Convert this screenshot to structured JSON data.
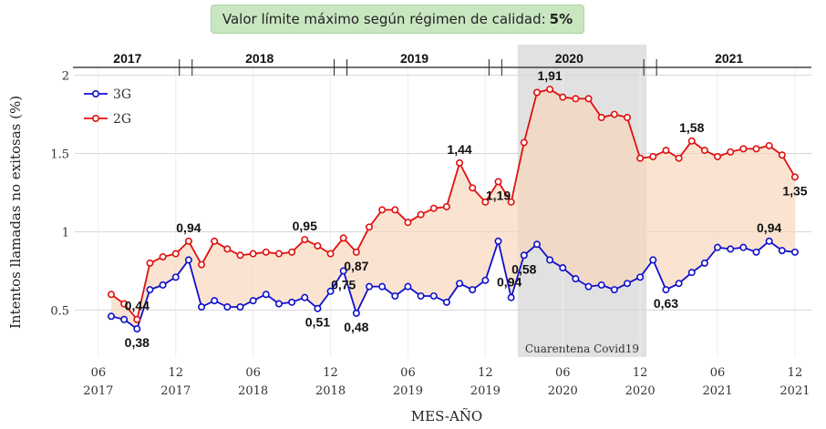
{
  "banner": {
    "text": "Valor límite máximo según régimen de calidad:",
    "value": "5%"
  },
  "chart_data": {
    "type": "line",
    "xlabel": "MES-AÑO",
    "ylabel": "Intentos llamadas no exitosas (%)",
    "ylim": [
      0.2,
      2.05
    ],
    "yticks": [
      "0.5",
      "1",
      "1.5",
      "2"
    ],
    "grid": true,
    "legend_position": "top-left",
    "years": [
      "2017",
      "2018",
      "2019",
      "2020",
      "2021"
    ],
    "x_ticks": [
      {
        "month": "06",
        "year": "2017"
      },
      {
        "month": "12",
        "year": "2017"
      },
      {
        "month": "06",
        "year": "2018"
      },
      {
        "month": "12",
        "year": "2018"
      },
      {
        "month": "06",
        "year": "2019"
      },
      {
        "month": "12",
        "year": "2019"
      },
      {
        "month": "06",
        "year": "2020"
      },
      {
        "month": "12",
        "year": "2020"
      },
      {
        "month": "06",
        "year": "2021"
      },
      {
        "month": "12",
        "year": "2021"
      }
    ],
    "x_start": "2017-07",
    "x_end": "2021-12",
    "shaded_region": {
      "label": "Cuarentena Covid19",
      "start": "2020-03",
      "end": "2020-12"
    },
    "series": [
      {
        "name": "3G",
        "color": "#1010cc",
        "values": [
          0.46,
          0.44,
          0.38,
          0.63,
          0.66,
          0.71,
          0.82,
          0.52,
          0.56,
          0.52,
          0.52,
          0.56,
          0.6,
          0.54,
          0.55,
          0.58,
          0.51,
          0.62,
          0.75,
          0.48,
          0.65,
          0.65,
          0.59,
          0.65,
          0.59,
          0.59,
          0.55,
          0.67,
          0.63,
          0.69,
          0.94,
          0.58,
          0.85,
          0.92,
          0.82,
          0.77,
          0.7,
          0.65,
          0.66,
          0.63,
          0.67,
          0.71,
          0.82,
          0.63,
          0.67,
          0.74,
          0.8,
          0.9,
          0.89,
          0.9,
          0.87,
          0.94,
          0.88,
          0.87
        ]
      },
      {
        "name": "2G",
        "color": "#e01010",
        "values": [
          0.6,
          0.54,
          0.44,
          0.8,
          0.84,
          0.86,
          0.94,
          0.79,
          0.94,
          0.89,
          0.85,
          0.86,
          0.87,
          0.86,
          0.87,
          0.95,
          0.91,
          0.86,
          0.96,
          0.87,
          1.03,
          1.14,
          1.14,
          1.06,
          1.11,
          1.15,
          1.16,
          1.44,
          1.28,
          1.19,
          1.32,
          1.19,
          1.57,
          1.89,
          1.91,
          1.86,
          1.85,
          1.85,
          1.73,
          1.75,
          1.73,
          1.47,
          1.48,
          1.52,
          1.47,
          1.58,
          1.52,
          1.48,
          1.51,
          1.53,
          1.53,
          1.55,
          1.49,
          1.35
        ]
      }
    ],
    "annotations": [
      {
        "series": "3G",
        "month": "2017-09",
        "text": "0,38",
        "pos": "below"
      },
      {
        "series": "2G",
        "month": "2017-09",
        "text": "0,44",
        "pos": "above"
      },
      {
        "series": "2G",
        "month": "2018-01",
        "text": "0,94",
        "pos": "above"
      },
      {
        "series": "2G",
        "month": "2018-10",
        "text": "0,95",
        "pos": "above"
      },
      {
        "series": "3G",
        "month": "2018-11",
        "text": "0,51",
        "pos": "below"
      },
      {
        "series": "3G",
        "month": "2019-01",
        "text": "0,75",
        "pos": "below"
      },
      {
        "series": "2G",
        "month": "2019-02",
        "text": "0,87",
        "pos": "below"
      },
      {
        "series": "3G",
        "month": "2019-02",
        "text": "0,48",
        "pos": "below"
      },
      {
        "series": "2G",
        "month": "2019-10",
        "text": "1,44",
        "pos": "above"
      },
      {
        "series": "3G",
        "month": "2020-02",
        "text": "0,94",
        "pos": "above-left"
      },
      {
        "series": "2G",
        "month": "2020-01",
        "text": "1,19",
        "pos": "below"
      },
      {
        "series": "3G",
        "month": "2020-03",
        "text": "0,58",
        "pos": "below"
      },
      {
        "series": "2G",
        "month": "2020-05",
        "text": "1,91",
        "pos": "above"
      },
      {
        "series": "3G",
        "month": "2021-02",
        "text": "0,63",
        "pos": "below"
      },
      {
        "series": "2G",
        "month": "2021-04",
        "text": "1,58",
        "pos": "above"
      },
      {
        "series": "3G",
        "month": "2021-10",
        "text": "0,94",
        "pos": "above"
      },
      {
        "series": "2G",
        "month": "2021-12",
        "text": "1,35",
        "pos": "below"
      }
    ]
  }
}
